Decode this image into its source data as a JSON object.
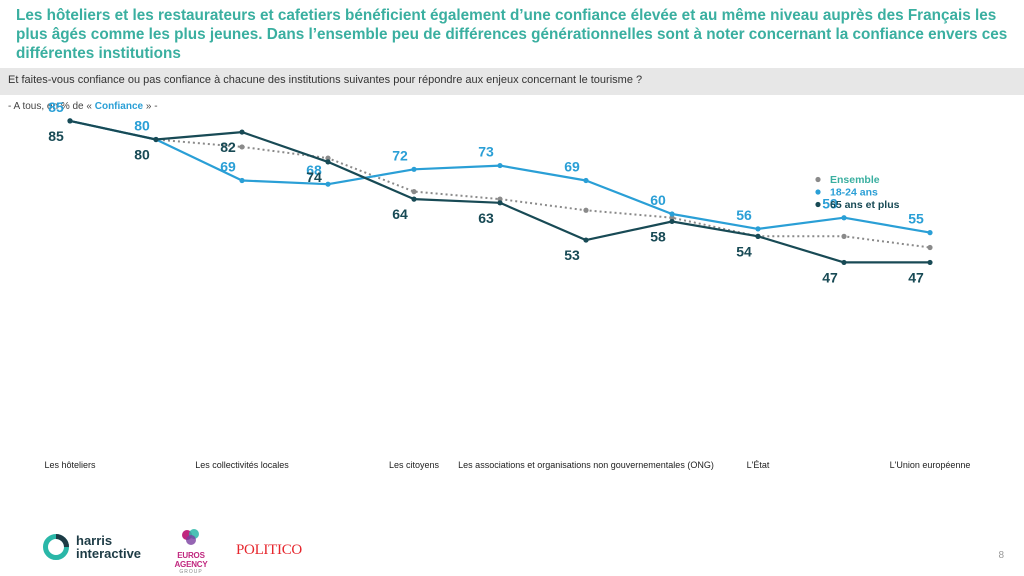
{
  "slide": {
    "headline": "Les hôteliers et les restaurateurs et cafetiers bénéficient également d’une confiance élevée et au même niveau auprès des Français les plus âgés comme les plus jeunes. Dans l’ensemble peu de différences générationnelles sont à noter concernant la confiance envers ces différentes institutions",
    "question": "Et faites-vous confiance ou pas confiance à chacune des institutions suivantes pour répondre aux enjeux concernant le tourisme ?",
    "base_prefix": "- A tous, en % de « ",
    "base_highlight": "Confiance",
    "base_suffix": " » -",
    "page_number": "8"
  },
  "logos": {
    "harris_line1": "harris",
    "harris_line2": "interactive",
    "euros": "EUROS AGENCY",
    "euros_sub": "GROUP",
    "politico": "POLITICO"
  },
  "chart_data": {
    "type": "line",
    "x_points": 11,
    "category_labels": [
      {
        "index": 0,
        "text": "Les hôteliers"
      },
      {
        "index": 2,
        "text": "Les collectivités locales"
      },
      {
        "index": 4,
        "text": "Les citoyens"
      },
      {
        "index": 6,
        "text": "Les associations et organisations non gouvernementales (ONG)"
      },
      {
        "index": 8,
        "text": "L'État"
      },
      {
        "index": 10,
        "text": "L'Union européenne"
      }
    ],
    "ylim": [
      0,
      100
    ],
    "legend_position": "top-right",
    "series": [
      {
        "name": "Ensemble",
        "color": "#8a8a8a",
        "style": "dotted",
        "labels": false,
        "values": [
          85,
          80,
          78,
          75,
          66,
          64,
          61,
          59,
          54,
          54,
          51
        ]
      },
      {
        "name": "18-24 ans",
        "color": "#2a9fd6",
        "style": "solid",
        "labels": true,
        "values": [
          85,
          80,
          69,
          68,
          72,
          73,
          69,
          60,
          56,
          59,
          55
        ]
      },
      {
        "name": "65 ans et plus",
        "color": "#184a55",
        "style": "solid",
        "labels": true,
        "values": [
          85,
          80,
          82,
          74,
          64,
          63,
          53,
          58,
          54,
          47,
          47
        ]
      }
    ]
  }
}
